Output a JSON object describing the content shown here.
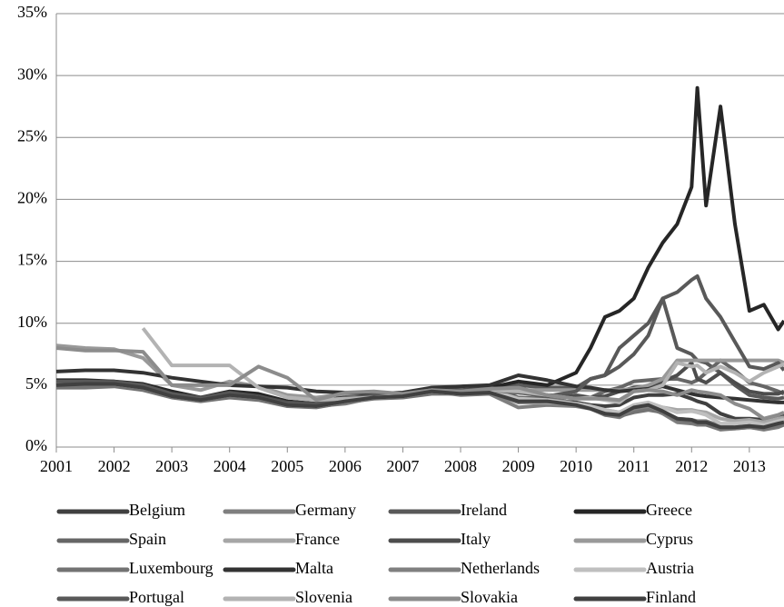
{
  "chart_data": {
    "type": "line",
    "x": [
      2001,
      2001.5,
      2002,
      2002.5,
      2003,
      2003.5,
      2004,
      2004.5,
      2005,
      2005.5,
      2006,
      2006.5,
      2007,
      2007.5,
      2008,
      2008.5,
      2009,
      2009.5,
      2010,
      2010.25,
      2010.5,
      2010.75,
      2011,
      2011.25,
      2011.5,
      2011.75,
      2012,
      2012.1,
      2012.25,
      2012.5,
      2012.75,
      2013,
      2013.25,
      2013.5,
      2013.6
    ],
    "xlim": [
      2001,
      2013.6
    ],
    "xticks": [
      2001,
      2002,
      2003,
      2004,
      2005,
      2006,
      2007,
      2008,
      2009,
      2010,
      2011,
      2012,
      2013
    ],
    "ylim": [
      0,
      35
    ],
    "yticks": [
      {
        "value": 0,
        "label": "0%"
      },
      {
        "value": 5,
        "label": "5%"
      },
      {
        "value": 10,
        "label": "10%"
      },
      {
        "value": 15,
        "label": "15%"
      },
      {
        "value": 20,
        "label": "20%"
      },
      {
        "value": 25,
        "label": "25%"
      },
      {
        "value": 30,
        "label": "30%"
      },
      {
        "value": 35,
        "label": "35%"
      }
    ],
    "grid": true,
    "legend": "bottom",
    "series": [
      {
        "name": "Belgium",
        "color": "#404040",
        "values": [
          5.1,
          5.1,
          5.2,
          4.9,
          4.2,
          3.9,
          4.3,
          4.0,
          3.4,
          3.3,
          3.8,
          4.1,
          4.2,
          4.6,
          4.5,
          4.8,
          4.0,
          3.8,
          3.6,
          3.4,
          3.3,
          3.4,
          4.0,
          4.2,
          4.2,
          4.3,
          3.9,
          3.7,
          3.5,
          2.7,
          2.3,
          2.3,
          2.2,
          2.5,
          2.6
        ]
      },
      {
        "name": "Germany",
        "color": "#7f7f7f",
        "values": [
          5.0,
          5.0,
          5.1,
          4.8,
          4.1,
          3.8,
          4.2,
          4.0,
          3.5,
          3.3,
          3.5,
          4.0,
          4.1,
          4.5,
          4.2,
          4.3,
          3.2,
          3.4,
          3.3,
          3.1,
          2.6,
          2.4,
          3.0,
          3.2,
          2.7,
          2.0,
          1.9,
          1.8,
          1.8,
          1.4,
          1.5,
          1.6,
          1.4,
          1.6,
          1.8
        ]
      },
      {
        "name": "Ireland",
        "color": "#595959",
        "values": [
          5.0,
          5.1,
          5.1,
          4.9,
          4.2,
          3.9,
          4.3,
          4.0,
          3.5,
          3.3,
          3.8,
          4.1,
          4.2,
          4.6,
          4.5,
          4.7,
          5.0,
          4.8,
          4.8,
          5.5,
          5.8,
          8.0,
          9.0,
          10.0,
          12.0,
          8.0,
          7.5,
          7.0,
          6.8,
          6.0,
          5.0,
          4.2,
          4.0,
          3.9,
          4.0
        ]
      },
      {
        "name": "Greece",
        "color": "#262626",
        "values": [
          5.4,
          5.4,
          5.3,
          5.1,
          4.5,
          4.0,
          4.5,
          4.3,
          3.7,
          3.5,
          4.1,
          4.2,
          4.3,
          4.6,
          4.5,
          4.8,
          5.3,
          5.0,
          6.0,
          8.0,
          10.5,
          11.0,
          12.0,
          14.5,
          16.5,
          18.0,
          21.0,
          29.0,
          19.5,
          27.5,
          18.0,
          11.0,
          11.5,
          9.5,
          10.2
        ]
      },
      {
        "name": "Spain",
        "color": "#666666",
        "values": [
          5.1,
          5.2,
          5.2,
          4.9,
          4.2,
          3.9,
          4.3,
          4.0,
          3.5,
          3.3,
          3.8,
          4.1,
          4.2,
          4.6,
          4.4,
          4.6,
          4.0,
          3.9,
          4.2,
          4.0,
          4.5,
          4.8,
          5.3,
          5.4,
          5.5,
          5.5,
          5.2,
          5.4,
          6.0,
          7.0,
          6.2,
          5.2,
          4.9,
          4.5,
          4.3
        ]
      },
      {
        "name": "France",
        "color": "#a6a6a6",
        "values": [
          5.0,
          5.1,
          5.1,
          4.8,
          4.1,
          3.8,
          4.2,
          4.0,
          3.4,
          3.3,
          3.7,
          4.0,
          4.1,
          4.5,
          4.3,
          4.5,
          3.6,
          3.6,
          3.5,
          3.3,
          3.0,
          2.8,
          3.3,
          3.5,
          3.2,
          3.0,
          3.0,
          2.9,
          2.8,
          2.3,
          2.1,
          2.2,
          2.0,
          2.3,
          2.4
        ]
      },
      {
        "name": "Italy",
        "color": "#4d4d4d",
        "values": [
          5.2,
          5.3,
          5.3,
          5.0,
          4.3,
          4.0,
          4.4,
          4.1,
          3.6,
          3.5,
          4.0,
          4.2,
          4.3,
          4.7,
          4.6,
          4.8,
          4.4,
          4.2,
          4.1,
          4.0,
          4.1,
          4.5,
          4.8,
          4.9,
          5.3,
          5.8,
          6.8,
          5.5,
          5.2,
          6.0,
          5.2,
          4.5,
          4.3,
          4.3,
          4.5
        ]
      },
      {
        "name": "Cyprus",
        "color": "#999999",
        "values": [
          8.2,
          8.0,
          7.9,
          7.2,
          5.0,
          4.6,
          5.3,
          4.9,
          4.2,
          4.0,
          4.3,
          4.3,
          4.3,
          4.5,
          4.5,
          4.6,
          4.6,
          4.6,
          4.6,
          4.6,
          4.6,
          4.6,
          4.7,
          5.0,
          5.5,
          7.0,
          7.0,
          7.0,
          7.0,
          7.0,
          7.0,
          7.0,
          7.0,
          7.0,
          6.8
        ]
      },
      {
        "name": "Luxembourg",
        "color": "#737373",
        "values": [
          4.8,
          4.8,
          4.9,
          4.6,
          4.0,
          3.7,
          4.0,
          3.8,
          3.3,
          3.2,
          3.6,
          3.9,
          4.0,
          4.3,
          4.3,
          4.3,
          4.4,
          4.2,
          3.4,
          3.2,
          2.6,
          2.5,
          2.8,
          3.0,
          2.8,
          2.2,
          2.0,
          1.9,
          1.8,
          1.5,
          1.5,
          1.6,
          1.5,
          1.7,
          1.8
        ]
      },
      {
        "name": "Malta",
        "color": "#333333",
        "values": [
          6.1,
          6.2,
          6.2,
          6.0,
          5.6,
          5.3,
          5.0,
          4.9,
          4.8,
          4.5,
          4.4,
          4.3,
          4.4,
          4.8,
          4.9,
          5.0,
          5.8,
          5.4,
          4.9,
          4.8,
          4.6,
          4.5,
          4.6,
          4.7,
          4.9,
          4.6,
          4.3,
          4.2,
          4.1,
          4.0,
          3.9,
          3.8,
          3.7,
          3.6,
          3.6
        ]
      },
      {
        "name": "Netherlands",
        "color": "#808080",
        "values": [
          5.0,
          5.1,
          5.1,
          4.8,
          4.1,
          3.8,
          4.2,
          4.0,
          3.4,
          3.3,
          3.7,
          4.0,
          4.1,
          4.5,
          4.3,
          4.4,
          3.6,
          3.7,
          3.5,
          3.2,
          2.8,
          2.6,
          3.1,
          3.3,
          2.9,
          2.3,
          2.2,
          2.1,
          2.1,
          1.7,
          1.6,
          1.8,
          1.6,
          1.9,
          2.0
        ]
      },
      {
        "name": "Austria",
        "color": "#bfbfbf",
        "values": [
          5.1,
          5.1,
          5.1,
          4.8,
          4.1,
          3.8,
          4.2,
          4.0,
          3.4,
          3.3,
          3.7,
          4.0,
          4.1,
          4.5,
          4.3,
          4.6,
          3.9,
          3.8,
          3.5,
          3.3,
          3.0,
          2.8,
          3.4,
          3.6,
          3.2,
          2.8,
          2.9,
          2.8,
          2.6,
          1.9,
          1.9,
          2.0,
          1.8,
          2.1,
          2.2
        ]
      },
      {
        "name": "Portugal",
        "color": "#595959",
        "values": [
          5.3,
          5.3,
          5.2,
          5.0,
          4.3,
          3.9,
          4.3,
          4.0,
          3.5,
          3.4,
          3.9,
          4.2,
          4.3,
          4.6,
          4.4,
          4.6,
          4.4,
          4.1,
          4.5,
          5.5,
          5.8,
          6.5,
          7.5,
          9.0,
          12.0,
          12.5,
          13.5,
          13.8,
          12.0,
          10.5,
          8.5,
          6.5,
          6.3,
          6.8,
          6.2
        ]
      },
      {
        "name": "Slovenia",
        "color": "#b3b3b3",
        "values": [
          null,
          null,
          null,
          9.6,
          6.6,
          6.6,
          6.6,
          4.8,
          4.0,
          3.8,
          3.9,
          4.0,
          4.2,
          4.6,
          4.3,
          4.6,
          4.5,
          4.2,
          3.9,
          4.0,
          3.8,
          3.6,
          4.5,
          4.6,
          5.0,
          6.8,
          6.5,
          6.6,
          6.0,
          6.5,
          6.0,
          5.3,
          6.0,
          6.5,
          6.7
        ]
      },
      {
        "name": "Slovakia",
        "color": "#8c8c8c",
        "values": [
          8.0,
          7.8,
          7.8,
          7.7,
          5.0,
          5.0,
          5.0,
          6.5,
          5.6,
          3.8,
          4.4,
          4.5,
          4.3,
          4.6,
          4.5,
          4.7,
          4.8,
          4.2,
          3.9,
          3.9,
          3.9,
          3.8,
          4.5,
          4.6,
          4.5,
          4.2,
          4.6,
          4.5,
          4.4,
          4.2,
          3.5,
          3.1,
          2.3,
          2.6,
          2.8
        ]
      },
      {
        "name": "Finland",
        "color": "#404040",
        "values": [
          5.0,
          5.1,
          5.1,
          4.8,
          4.1,
          3.8,
          4.2,
          4.0,
          3.4,
          3.3,
          3.7,
          4.0,
          4.1,
          4.5,
          4.3,
          4.4,
          3.7,
          3.7,
          3.4,
          3.1,
          2.7,
          2.6,
          3.2,
          3.4,
          2.9,
          2.3,
          2.2,
          2.0,
          2.0,
          1.6,
          1.6,
          1.7,
          1.6,
          1.9,
          2.0
        ]
      }
    ]
  }
}
